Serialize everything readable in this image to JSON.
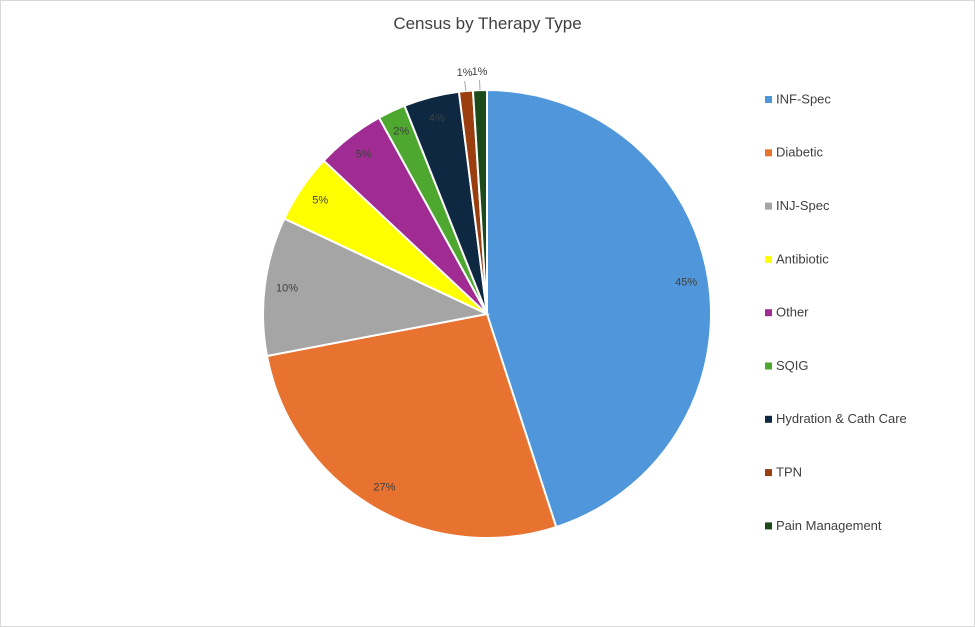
{
  "chart_data": {
    "type": "pie",
    "title": "Census by Therapy Type",
    "legend_position": "right",
    "slices": [
      {
        "label": "INF-Spec",
        "value": 45,
        "value_label": "45%",
        "color": "#4F96DA"
      },
      {
        "label": "Diabetic",
        "value": 27,
        "value_label": "27%",
        "color": "#E87230"
      },
      {
        "label": "INJ-Spec",
        "value": 10,
        "value_label": "10%",
        "color": "#A5A5A5"
      },
      {
        "label": "Antibiotic",
        "value": 5,
        "value_label": "5%",
        "color": "#FFFF00"
      },
      {
        "label": "Other",
        "value": 5,
        "value_label": "5%",
        "color": "#A02B93"
      },
      {
        "label": "SQIG",
        "value": 2,
        "value_label": "2%",
        "color": "#4EA72E"
      },
      {
        "label": "Hydration & Cath Care",
        "value": 4,
        "value_label": "4%",
        "color": "#0E2841"
      },
      {
        "label": "TPN",
        "value": 1,
        "value_label": "1%",
        "color": "#9A3D0F"
      },
      {
        "label": "Pain Management",
        "value": 1,
        "value_label": "1%",
        "color": "#1C4A1A"
      }
    ]
  }
}
